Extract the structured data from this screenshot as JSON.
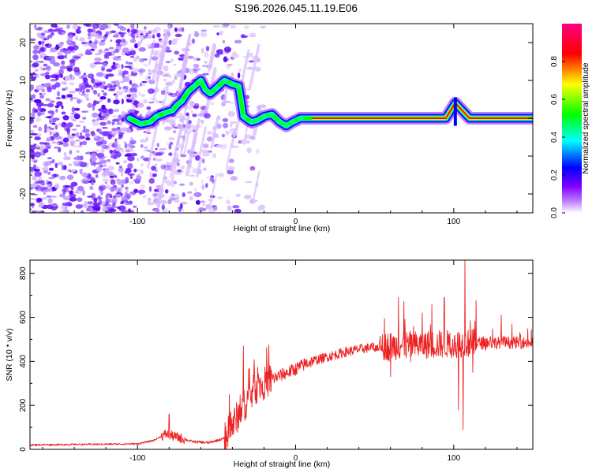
{
  "title": "S196.2026.045.11.19.E06",
  "chart_data": [
    {
      "type": "heatmap",
      "name": "spectrogram",
      "xlabel": "Height of straight line (km)",
      "ylabel": "Frequency (Hz)",
      "xlim": [
        -168,
        150
      ],
      "ylim": [
        -25,
        25
      ],
      "xticks": [
        -100,
        0,
        100
      ],
      "xtick_labels": [
        "-100",
        "0",
        "100"
      ],
      "yticks": [
        -20,
        -10,
        0,
        10,
        20
      ],
      "ytick_labels": [
        "-20",
        "-10",
        "0",
        "10",
        "20"
      ],
      "colorbar": {
        "label": "Normalized spectral amplitude",
        "range": [
          0,
          1
        ],
        "ticks": [
          0,
          0.2,
          0.4,
          0.6,
          0.8
        ],
        "tick_labels": [
          "0.0",
          "0.2",
          "0.4",
          "0.6",
          "0.8"
        ],
        "colormap": [
          "#ffffff",
          "#8000ff",
          "#0000ff",
          "#00ffff",
          "#00ff00",
          "#ffff00",
          "#ff0000",
          "#ff0080"
        ]
      },
      "ridge": [
        {
          "x": -105,
          "y": 0
        },
        {
          "x": -98,
          "y": -1.5
        },
        {
          "x": -92,
          "y": -1.0
        },
        {
          "x": -88,
          "y": 0.5
        },
        {
          "x": -82,
          "y": 1.5
        },
        {
          "x": -78,
          "y": 2.0
        },
        {
          "x": -75,
          "y": 3.5
        },
        {
          "x": -72,
          "y": 4.5
        },
        {
          "x": -68,
          "y": 7.0
        },
        {
          "x": -64,
          "y": 8.5
        },
        {
          "x": -60,
          "y": 10.0
        },
        {
          "x": -57,
          "y": 7.5
        },
        {
          "x": -54,
          "y": 6.5
        },
        {
          "x": -50,
          "y": 8.0
        },
        {
          "x": -45,
          "y": 10.0
        },
        {
          "x": -40,
          "y": 9.0
        },
        {
          "x": -36,
          "y": 8.5
        },
        {
          "x": -33,
          "y": 0.5
        },
        {
          "x": -28,
          "y": -1.0
        },
        {
          "x": -24,
          "y": -0.5
        },
        {
          "x": -20,
          "y": 0.5
        },
        {
          "x": -15,
          "y": 1.0
        },
        {
          "x": -10,
          "y": -1.0
        },
        {
          "x": -6,
          "y": -2.0
        },
        {
          "x": -2,
          "y": -1.0
        },
        {
          "x": 3,
          "y": 0
        },
        {
          "x": 10,
          "y": 0
        },
        {
          "x": 40,
          "y": 0
        },
        {
          "x": 65,
          "y": 0
        },
        {
          "x": 95,
          "y": 0
        },
        {
          "x": 101,
          "y": 4.0
        },
        {
          "x": 110,
          "y": 0
        },
        {
          "x": 150,
          "y": 0
        }
      ]
    },
    {
      "type": "line",
      "name": "snr",
      "xlabel": "Height of straight line (km)",
      "ylabel": "SNR (10 * v/v)",
      "xlim": [
        -168,
        150
      ],
      "ylim": [
        0,
        860
      ],
      "xticks": [
        -100,
        0,
        100
      ],
      "xtick_labels": [
        "-100",
        "0",
        "100"
      ],
      "yticks": [
        0,
        200,
        400,
        600,
        800
      ],
      "ytick_labels": [
        "0",
        "200",
        "400",
        "600",
        "800"
      ],
      "color": "#ee2222",
      "baseline": [
        {
          "x": -168,
          "y": 20
        },
        {
          "x": -100,
          "y": 25
        },
        {
          "x": -90,
          "y": 40
        },
        {
          "x": -82,
          "y": 70
        },
        {
          "x": -75,
          "y": 55
        },
        {
          "x": -65,
          "y": 35
        },
        {
          "x": -55,
          "y": 30
        },
        {
          "x": -45,
          "y": 50
        },
        {
          "x": -40,
          "y": 110
        },
        {
          "x": -35,
          "y": 170
        },
        {
          "x": -30,
          "y": 230
        },
        {
          "x": -25,
          "y": 280
        },
        {
          "x": -20,
          "y": 300
        },
        {
          "x": -15,
          "y": 320
        },
        {
          "x": -10,
          "y": 335
        },
        {
          "x": -5,
          "y": 350
        },
        {
          "x": 0,
          "y": 365
        },
        {
          "x": 5,
          "y": 385
        },
        {
          "x": 10,
          "y": 400
        },
        {
          "x": 20,
          "y": 420
        },
        {
          "x": 30,
          "y": 440
        },
        {
          "x": 40,
          "y": 455
        },
        {
          "x": 50,
          "y": 465
        },
        {
          "x": 60,
          "y": 470
        },
        {
          "x": 80,
          "y": 475
        },
        {
          "x": 100,
          "y": 480
        },
        {
          "x": 120,
          "y": 485
        },
        {
          "x": 150,
          "y": 485
        }
      ],
      "peaks": [
        {
          "x": -80,
          "y": 160
        },
        {
          "x": -33,
          "y": 470
        },
        {
          "x": -26,
          "y": 370
        },
        {
          "x": 65,
          "y": 690
        },
        {
          "x": 80,
          "y": 620
        },
        {
          "x": 94,
          "y": 690
        },
        {
          "x": 103,
          "y": 730
        },
        {
          "x": 107,
          "y": 860
        },
        {
          "x": 130,
          "y": 610
        }
      ],
      "dips": [
        {
          "x": 60,
          "y": 330
        },
        {
          "x": 103,
          "y": 180
        },
        {
          "x": 106,
          "y": 90
        },
        {
          "x": 112,
          "y": 350
        }
      ]
    }
  ]
}
